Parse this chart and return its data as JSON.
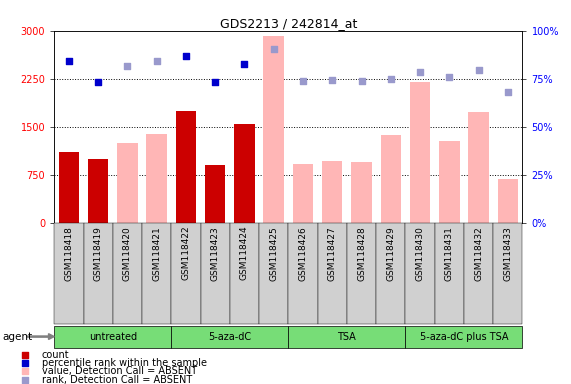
{
  "title": "GDS2213 / 242814_at",
  "samples": [
    "GSM118418",
    "GSM118419",
    "GSM118420",
    "GSM118421",
    "GSM118422",
    "GSM118423",
    "GSM118424",
    "GSM118425",
    "GSM118426",
    "GSM118427",
    "GSM118428",
    "GSM118429",
    "GSM118430",
    "GSM118431",
    "GSM118432",
    "GSM118433"
  ],
  "groups": [
    {
      "name": "untreated",
      "start": 0,
      "end": 3
    },
    {
      "name": "5-aza-dC",
      "start": 4,
      "end": 7
    },
    {
      "name": "TSA",
      "start": 8,
      "end": 11
    },
    {
      "name": "5-aza-dC plus TSA",
      "start": 12,
      "end": 15
    }
  ],
  "count_values": [
    1100,
    1000,
    null,
    null,
    1750,
    900,
    1550,
    null,
    null,
    null,
    null,
    null,
    null,
    null,
    null,
    null
  ],
  "absent_value_bars": [
    null,
    null,
    1250,
    1380,
    null,
    null,
    null,
    2920,
    920,
    960,
    950,
    1370,
    2200,
    1280,
    1730,
    680
  ],
  "percentile_rank_present": [
    2520,
    2200,
    null,
    null,
    2600,
    2200,
    2480,
    null,
    null,
    null,
    null,
    null,
    null,
    null,
    null,
    null
  ],
  "percentile_rank_absent": [
    null,
    null,
    2450,
    2520,
    null,
    null,
    null,
    2720,
    2220,
    2230,
    2210,
    2250,
    2350,
    2280,
    2380,
    2050
  ],
  "ylim_left": [
    0,
    3000
  ],
  "ylim_right": [
    0,
    100
  ],
  "yticks_left": [
    0,
    750,
    1500,
    2250,
    3000
  ],
  "yticks_right": [
    0,
    25,
    50,
    75,
    100
  ],
  "dark_red": "#cc0000",
  "light_pink": "#ffb6b6",
  "dark_blue": "#0000cc",
  "light_blue": "#9999cc",
  "bg_group": "#77dd77",
  "col_bg": "#d0d0d0",
  "agent_label": "agent"
}
